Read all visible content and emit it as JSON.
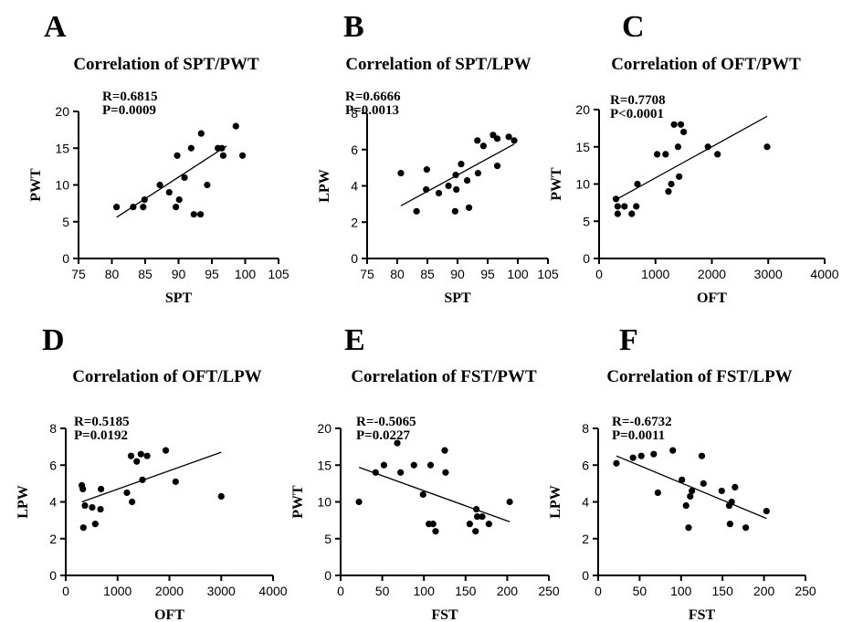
{
  "chart_data": [
    {
      "type": "scatter",
      "letter": "A",
      "title": "Correlation of SPT/PWT",
      "xlabel": "SPT",
      "ylabel": "PWT",
      "xlim": [
        75,
        105
      ],
      "ylim": [
        0,
        20
      ],
      "xticks": [
        "75",
        "80",
        "85",
        "90",
        "95",
        "100",
        "105"
      ],
      "yticks": [
        "0",
        "5",
        "10",
        "15",
        "20"
      ],
      "stats": [
        "R=0.6815",
        "P=0.0009"
      ],
      "points": [
        [
          80.7,
          7
        ],
        [
          83.2,
          7
        ],
        [
          84.9,
          8
        ],
        [
          84.7,
          7
        ],
        [
          87.2,
          10
        ],
        [
          88.6,
          9
        ],
        [
          89.6,
          7
        ],
        [
          89.8,
          14
        ],
        [
          90.1,
          8
        ],
        [
          90.9,
          11
        ],
        [
          91.9,
          15
        ],
        [
          92.3,
          6
        ],
        [
          93.3,
          6
        ],
        [
          93.4,
          17
        ],
        [
          94.3,
          10
        ],
        [
          95.9,
          15
        ],
        [
          96.5,
          15
        ],
        [
          96.7,
          14
        ],
        [
          98.6,
          18
        ],
        [
          99.6,
          14
        ]
      ],
      "fit": [
        [
          80.7,
          5.6
        ],
        [
          97.2,
          15.3
        ]
      ]
    },
    {
      "type": "scatter",
      "letter": "B",
      "title": "Correlation of SPT/LPW",
      "xlabel": "SPT",
      "ylabel": "LPW",
      "xlim": [
        75,
        105
      ],
      "ylim": [
        0,
        8
      ],
      "xticks": [
        "75",
        "80",
        "85",
        "90",
        "95",
        "100",
        "105"
      ],
      "yticks": [
        "0",
        "2",
        "4",
        "6",
        "8"
      ],
      "stats": [
        "R=0.6666",
        "P=0.0013"
      ],
      "points": [
        [
          80.6,
          4.7
        ],
        [
          83.2,
          2.6
        ],
        [
          84.8,
          3.8
        ],
        [
          84.9,
          4.9
        ],
        [
          86.9,
          3.6
        ],
        [
          88.5,
          4.0
        ],
        [
          89.6,
          2.6
        ],
        [
          89.7,
          4.6
        ],
        [
          89.8,
          3.8
        ],
        [
          90.6,
          5.2
        ],
        [
          91.6,
          4.3
        ],
        [
          91.9,
          2.8
        ],
        [
          93.3,
          6.5
        ],
        [
          93.4,
          4.7
        ],
        [
          94.3,
          6.2
        ],
        [
          95.9,
          6.8
        ],
        [
          96.6,
          6.6
        ],
        [
          96.6,
          5.1
        ],
        [
          98.5,
          6.7
        ],
        [
          99.4,
          6.5
        ]
      ],
      "fit": [
        [
          80.6,
          2.9
        ],
        [
          99.4,
          6.3
        ]
      ]
    },
    {
      "type": "scatter",
      "letter": "C",
      "title": "Correlation of OFT/PWT",
      "xlabel": "OFT",
      "ylabel": "PWT",
      "xlim": [
        0,
        4000
      ],
      "ylim": [
        0,
        20
      ],
      "xticks": [
        "0",
        "1000",
        "2000",
        "3000",
        "4000"
      ],
      "yticks": [
        "0",
        "5",
        "10",
        "15",
        "20"
      ],
      "stats": [
        "R=0.7708",
        "P<0.0001"
      ],
      "points": [
        [
          300,
          8
        ],
        [
          330,
          6
        ],
        [
          330,
          7
        ],
        [
          450,
          7
        ],
        [
          580,
          6
        ],
        [
          660,
          7
        ],
        [
          680,
          10
        ],
        [
          1030,
          14
        ],
        [
          1180,
          14
        ],
        [
          1230,
          9
        ],
        [
          1280,
          10
        ],
        [
          1330,
          18
        ],
        [
          1400,
          15
        ],
        [
          1420,
          11
        ],
        [
          1450,
          18
        ],
        [
          1500,
          17
        ],
        [
          1930,
          15
        ],
        [
          2100,
          14
        ],
        [
          2980,
          15
        ]
      ],
      "fit": [
        [
          300,
          7.9
        ],
        [
          2980,
          19.1
        ]
      ]
    },
    {
      "type": "scatter",
      "letter": "D",
      "title": "Correlation of OFT/LPW",
      "xlabel": "OFT",
      "ylabel": "LPW",
      "xlim": [
        0,
        4000
      ],
      "ylim": [
        0,
        8
      ],
      "xticks": [
        "0",
        "1000",
        "2000",
        "3000",
        "4000"
      ],
      "yticks": [
        "0",
        "2",
        "4",
        "6",
        "8"
      ],
      "stats": [
        "R=0.5185",
        "P=0.0192"
      ],
      "points": [
        [
          310,
          4.9
        ],
        [
          330,
          4.7
        ],
        [
          340,
          2.6
        ],
        [
          370,
          3.8
        ],
        [
          510,
          3.7
        ],
        [
          570,
          2.8
        ],
        [
          670,
          3.6
        ],
        [
          680,
          4.7
        ],
        [
          1180,
          4.5
        ],
        [
          1260,
          6.5
        ],
        [
          1280,
          4.0
        ],
        [
          1370,
          6.2
        ],
        [
          1450,
          6.6
        ],
        [
          1480,
          5.2
        ],
        [
          1570,
          6.5
        ],
        [
          1930,
          6.8
        ],
        [
          2120,
          5.1
        ],
        [
          3000,
          4.3
        ]
      ],
      "fit": [
        [
          310,
          4.0
        ],
        [
          3000,
          6.7
        ]
      ]
    },
    {
      "type": "scatter",
      "letter": "E",
      "title": "Correlation of FST/PWT",
      "xlabel": "FST",
      "ylabel": "PWT",
      "xlim": [
        0,
        250
      ],
      "ylim": [
        0,
        20
      ],
      "xticks": [
        "0",
        "50",
        "100",
        "150",
        "200",
        "250"
      ],
      "yticks": [
        "0",
        "5",
        "10",
        "15",
        "20"
      ],
      "stats": [
        "R=-0.5065",
        "P=0.0227"
      ],
      "points": [
        [
          22,
          10
        ],
        [
          42,
          14
        ],
        [
          52,
          15
        ],
        [
          68,
          18
        ],
        [
          72,
          14
        ],
        [
          88,
          15
        ],
        [
          99,
          11
        ],
        [
          106,
          7
        ],
        [
          108,
          15
        ],
        [
          111,
          7
        ],
        [
          114,
          6
        ],
        [
          125,
          17
        ],
        [
          126,
          14
        ],
        [
          155,
          7
        ],
        [
          162,
          6
        ],
        [
          163,
          9
        ],
        [
          164,
          8
        ],
        [
          170,
          8
        ],
        [
          178,
          7
        ],
        [
          203,
          10
        ]
      ],
      "fit": [
        [
          22,
          14.7
        ],
        [
          203,
          7.3
        ]
      ]
    },
    {
      "type": "scatter",
      "letter": "F",
      "title": "Correlation of FST/LPW",
      "xlabel": "FST",
      "ylabel": "LPW",
      "xlim": [
        0,
        250
      ],
      "ylim": [
        0,
        8
      ],
      "xticks": [
        "0",
        "50",
        "100",
        "150",
        "200",
        "250"
      ],
      "yticks": [
        "0",
        "2",
        "4",
        "6",
        "8"
      ],
      "stats": [
        "R=-0.6732",
        "P=0.0011"
      ],
      "points": [
        [
          22,
          6.1
        ],
        [
          42,
          6.4
        ],
        [
          52,
          6.5
        ],
        [
          67,
          6.6
        ],
        [
          72,
          4.5
        ],
        [
          90,
          6.8
        ],
        [
          101,
          5.2
        ],
        [
          106,
          3.8
        ],
        [
          109,
          2.6
        ],
        [
          111,
          4.3
        ],
        [
          113,
          4.6
        ],
        [
          125,
          6.5
        ],
        [
          127,
          5.0
        ],
        [
          149,
          4.6
        ],
        [
          158,
          3.8
        ],
        [
          159,
          2.8
        ],
        [
          161,
          4.0
        ],
        [
          165,
          4.8
        ],
        [
          178,
          2.6
        ],
        [
          203,
          3.5
        ]
      ],
      "fit": [
        [
          22,
          6.5
        ],
        [
          203,
          3.1
        ]
      ]
    }
  ]
}
